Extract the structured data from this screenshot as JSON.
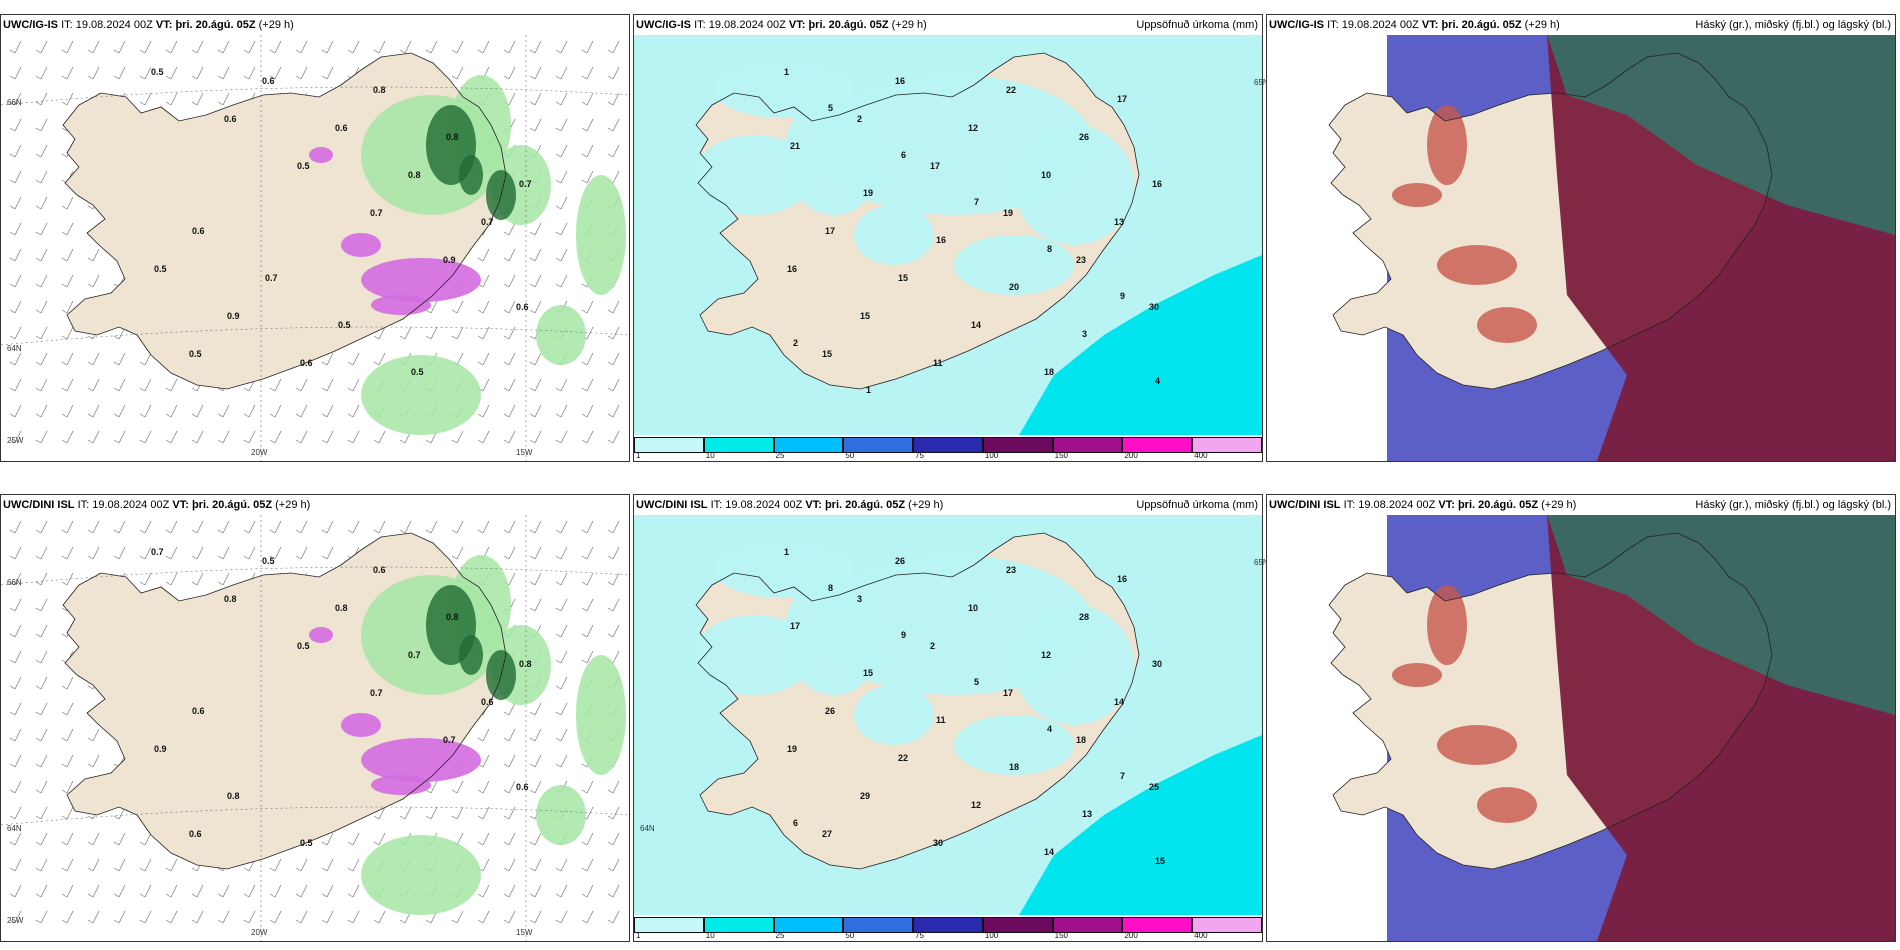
{
  "colors": {
    "land": "#efe3d2",
    "precip_light": "#b8f4f4",
    "precip_mid": "#00e5ee",
    "snow_pink": "#d36be0",
    "green_light": "#a4e6a4",
    "green_dark": "#1f6b33",
    "cloud_low": "#5c5fc6",
    "cloud_mid": "#7a1e3d",
    "cloud_high": "#2d7a6a"
  },
  "panels": [
    {
      "row": 0,
      "col": 0,
      "type": "snow",
      "model": "UWC/IG-IS",
      "it_label": "IT:",
      "it_value": "19.08.2024 00Z",
      "vt_label": "VT:",
      "vt_value": "þri. 20.ágú. 05Z",
      "lead": "(+29 h)",
      "title_right": "",
      "axis_labels": [
        "66N",
        "64N",
        "25W",
        "20W",
        "15W"
      ],
      "values": [
        "0.5",
        "0.6",
        "0.5",
        "0.7",
        "0.9",
        "0.6",
        "0.5",
        "0.6",
        "0.6",
        "0.8",
        "0.7",
        "0.5",
        "0.9",
        "0.6",
        "0.8",
        "0.8",
        "0.7",
        "0.6",
        "0.7",
        "0.5",
        "0.5"
      ]
    },
    {
      "row": 0,
      "col": 1,
      "type": "precip",
      "model": "UWC/IG-IS",
      "it_label": "IT:",
      "it_value": "19.08.2024 00Z",
      "vt_label": "VT:",
      "vt_value": "þri. 20.ágú. 05Z",
      "lead": "(+29 h)",
      "title_right": "Uppsöfnuð úrkoma (mm)",
      "axis_labels": [
        "65N"
      ],
      "values": [
        "1",
        "2",
        "17",
        "19",
        "23",
        "30",
        "15",
        "16",
        "12",
        "10",
        "13",
        "16",
        "15",
        "11",
        "22",
        "26",
        "16",
        "17",
        "15",
        "14",
        "18",
        "17",
        "21",
        "19",
        "16",
        "20",
        "3",
        "4",
        "5",
        "6",
        "7",
        "8",
        "9",
        "2",
        "1"
      ],
      "scale": [
        "1",
        "10",
        "25",
        "50",
        "75",
        "100",
        "150",
        "200",
        "400"
      ]
    },
    {
      "row": 0,
      "col": 2,
      "type": "cloud",
      "model": "UWC/IG-IS",
      "it_label": "IT:",
      "it_value": "19.08.2024 00Z",
      "vt_label": "VT:",
      "vt_value": "þri. 20.ágú. 05Z",
      "lead": "(+29 h)",
      "title_right": "Háský (gr.), miðský (fj.bl.) og lágský (bl.)",
      "axis_labels": [],
      "values": []
    },
    {
      "row": 1,
      "col": 0,
      "type": "snow",
      "model": "UWC/DINI ISL",
      "it_label": "IT:",
      "it_value": "19.08.2024 00Z",
      "vt_label": "VT:",
      "vt_value": "þri. 20.ágú. 05Z",
      "lead": "(+29 h)",
      "title_right": "",
      "axis_labels": [
        "66N",
        "64N",
        "25W",
        "20W",
        "15W"
      ],
      "values": [
        "0.7",
        "0.8",
        "0.5",
        "0.7",
        "0.7",
        "0.6",
        "0.6",
        "0.5",
        "0.8",
        "0.7",
        "0.6",
        "0.9",
        "0.8",
        "0.5",
        "0.6",
        "0.8",
        "0.8",
        "0.6"
      ]
    },
    {
      "row": 1,
      "col": 1,
      "type": "precip",
      "model": "UWC/DINI ISL",
      "it_label": "IT:",
      "it_value": "19.08.2024 00Z",
      "vt_label": "VT:",
      "vt_value": "þri. 20.ágú. 05Z",
      "lead": "(+29 h)",
      "title_right": "Uppsöfnuð úrkoma (mm)",
      "axis_labels": [
        "65N",
        "64N"
      ],
      "values": [
        "1",
        "3",
        "2",
        "17",
        "18",
        "25",
        "27",
        "26",
        "10",
        "12",
        "14",
        "19",
        "29",
        "30",
        "23",
        "28",
        "30",
        "26",
        "22",
        "12",
        "14",
        "16",
        "17",
        "15",
        "11",
        "18",
        "13",
        "15",
        "8",
        "9",
        "5",
        "4",
        "7",
        "6"
      ],
      "scale": [
        "1",
        "10",
        "25",
        "50",
        "75",
        "100",
        "150",
        "200",
        "400"
      ]
    },
    {
      "row": 1,
      "col": 2,
      "type": "cloud",
      "model": "UWC/DINI ISL",
      "it_label": "IT:",
      "it_value": "19.08.2024 00Z",
      "vt_label": "VT:",
      "vt_value": "þri. 20.ágú. 05Z",
      "lead": "(+29 h)",
      "title_right": "Háský (gr.), miðský (fj.bl.) og lágský (bl.)",
      "axis_labels": [],
      "values": []
    }
  ],
  "scale_colors": [
    "#c4f7f7",
    "#00eaea",
    "#00bfff",
    "#2f6ee0",
    "#2a2ab0",
    "#6b0a5e",
    "#a0108a",
    "#ff10c8",
    "#f3a6f0"
  ]
}
